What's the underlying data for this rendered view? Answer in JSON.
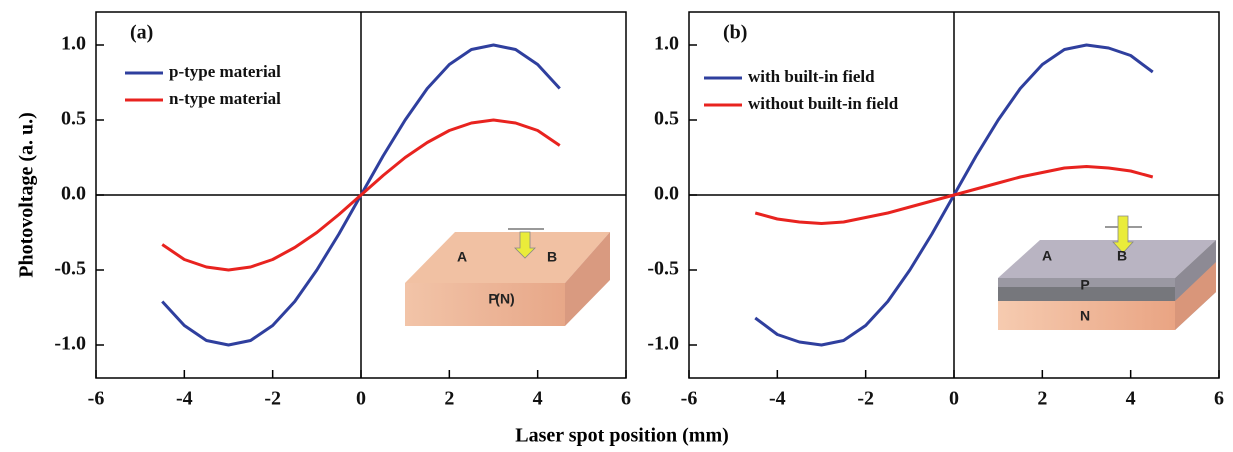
{
  "chart_data": [
    {
      "type": "line",
      "label": "(a)",
      "ylabel": "Photovoltage (a. u.)",
      "xlabel": "Laser spot position (mm)",
      "x": [
        -4.5,
        -4,
        -3.5,
        -3,
        -2.5,
        -2,
        -1.5,
        -1,
        -0.5,
        0,
        0.5,
        1,
        1.5,
        2,
        2.5,
        3,
        3.5,
        4,
        4.5
      ],
      "series": [
        {
          "name": "p-type material",
          "color": "#2f3f9e",
          "values": [
            -0.71,
            -0.87,
            -0.97,
            -1.0,
            -0.97,
            -0.87,
            -0.71,
            -0.5,
            -0.26,
            0,
            0.26,
            0.5,
            0.71,
            0.87,
            0.97,
            1.0,
            0.97,
            0.87,
            0.71
          ]
        },
        {
          "name": "n-type material",
          "color": "#e8231f",
          "values": [
            -0.33,
            -0.43,
            -0.48,
            -0.5,
            -0.48,
            -0.43,
            -0.35,
            -0.25,
            -0.13,
            0,
            0.13,
            0.25,
            0.35,
            0.43,
            0.48,
            0.5,
            0.48,
            0.43,
            0.33
          ]
        }
      ],
      "xlim": [
        -6,
        6
      ],
      "ylim": [
        -1.22,
        1.22
      ],
      "xticks": [
        -6,
        -4,
        -2,
        0,
        2,
        4,
        6
      ],
      "yticks": [
        {
          "value": -1,
          "label": "-1.0"
        },
        {
          "value": -0.5,
          "label": "-0.5"
        },
        {
          "value": 0,
          "label": "0.0"
        },
        {
          "value": 0.5,
          "label": "0.5"
        },
        {
          "value": 1,
          "label": "1.0"
        }
      ],
      "inset_labels": [
        "A",
        "B",
        "P",
        "(N)"
      ]
    },
    {
      "type": "line",
      "label": "(b)",
      "x": [
        -4.5,
        -4,
        -3.5,
        -3,
        -2.5,
        -2,
        -1.5,
        -1,
        -0.5,
        0,
        0.5,
        1,
        1.5,
        2,
        2.5,
        3,
        3.5,
        4,
        4.5
      ],
      "series": [
        {
          "name": "with built-in field",
          "color": "#2f3f9e",
          "values": [
            -0.82,
            -0.93,
            -0.98,
            -1.0,
            -0.97,
            -0.87,
            -0.71,
            -0.5,
            -0.26,
            0,
            0.26,
            0.5,
            0.71,
            0.87,
            0.97,
            1.0,
            0.98,
            0.93,
            0.82
          ]
        },
        {
          "name": "without built-in field",
          "color": "#e8231f",
          "values": [
            -0.12,
            -0.16,
            -0.18,
            -0.19,
            -0.18,
            -0.15,
            -0.12,
            -0.08,
            -0.04,
            0,
            0.04,
            0.08,
            0.12,
            0.15,
            0.18,
            0.19,
            0.18,
            0.16,
            0.12
          ]
        }
      ],
      "xlim": [
        -6,
        6
      ],
      "ylim": [
        -1.22,
        1.22
      ],
      "xticks": [
        -6,
        -4,
        -2,
        0,
        2,
        4,
        6
      ],
      "yticks": [
        {
          "value": -1,
          "label": "-1.0"
        },
        {
          "value": -0.5,
          "label": "-0.5"
        },
        {
          "value": 0,
          "label": "0.0"
        },
        {
          "value": 0.5,
          "label": "0.5"
        },
        {
          "value": 1,
          "label": "1.0"
        }
      ],
      "inset_labels": [
        "A",
        "B",
        "P",
        "N"
      ]
    }
  ]
}
